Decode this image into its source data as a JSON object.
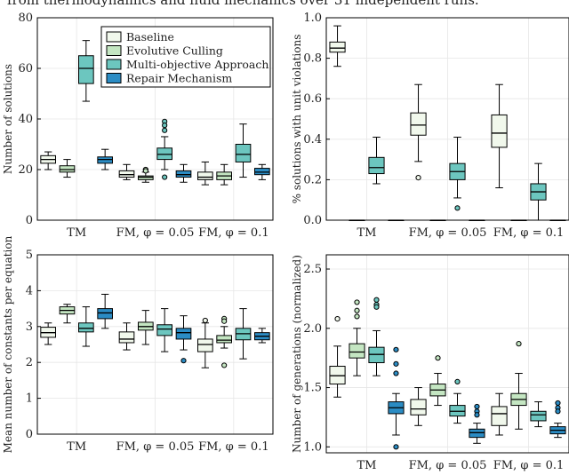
{
  "caption": "from thermodynamics and fluid mechanics over 31 independent runs.",
  "colors": {
    "Baseline": "#f1f8ec",
    "Evolutive Culling": "#c4e6c2",
    "Multi-objective Approach": "#6cc6bf",
    "Repair Mechanism": "#2b8cc4"
  },
  "chart_data": [
    {
      "id": "p1",
      "type": "box",
      "ylabel": "Number of solutions",
      "ylim": [
        0,
        80
      ],
      "yticks": [
        0,
        20,
        40,
        60,
        80
      ],
      "categories": [
        "TM",
        "FM, φ = 0.05",
        "FM, φ = 0.1"
      ],
      "legend": {
        "position": "top-center",
        "entries": [
          "Baseline",
          "Evolutive Culling",
          "Multi-objective Approach",
          "Repair Mechanism"
        ]
      },
      "series": [
        {
          "name": "Baseline",
          "stats": [
            {
              "whislo": 20,
              "q1": 22.5,
              "med": 24,
              "q3": 25.5,
              "whishi": 27,
              "fliers": []
            },
            {
              "whislo": 16,
              "q1": 17,
              "med": 18,
              "q3": 19.5,
              "whishi": 22,
              "fliers": []
            },
            {
              "whislo": 14,
              "q1": 16,
              "med": 17,
              "q3": 19,
              "whishi": 23,
              "fliers": []
            }
          ]
        },
        {
          "name": "Evolutive Culling",
          "stats": [
            {
              "whislo": 17,
              "q1": 19,
              "med": 20,
              "q3": 21.5,
              "whishi": 24,
              "fliers": []
            },
            {
              "whislo": 15,
              "q1": 16,
              "med": 17,
              "q3": 17.5,
              "whishi": 19,
              "fliers": [
                20,
                19.5
              ]
            },
            {
              "whislo": 14,
              "q1": 16,
              "med": 17.5,
              "q3": 19,
              "whishi": 22,
              "fliers": []
            }
          ]
        },
        {
          "name": "Multi-objective Approach",
          "stats": [
            {
              "whislo": 47,
              "q1": 54,
              "med": 60,
              "q3": 65,
              "whishi": 71,
              "fliers": []
            },
            {
              "whislo": 20,
              "q1": 24,
              "med": 26,
              "q3": 28.5,
              "whishi": 33,
              "fliers": [
                39,
                37.5,
                35.5,
                17
              ]
            },
            {
              "whislo": 17,
              "q1": 23,
              "med": 26,
              "q3": 30,
              "whishi": 38,
              "fliers": []
            }
          ]
        },
        {
          "name": "Repair Mechanism",
          "stats": [
            {
              "whislo": 20,
              "q1": 22.5,
              "med": 24,
              "q3": 25,
              "whishi": 28,
              "fliers": []
            },
            {
              "whislo": 15,
              "q1": 17,
              "med": 18,
              "q3": 19.5,
              "whishi": 22,
              "fliers": []
            },
            {
              "whislo": 16,
              "q1": 18,
              "med": 19,
              "q3": 20.5,
              "whishi": 22,
              "fliers": []
            }
          ]
        }
      ]
    },
    {
      "id": "p2",
      "type": "box",
      "ylabel": "% solutions with unit violations",
      "ylim": [
        0,
        1.0
      ],
      "yticks": [
        0.0,
        0.2,
        0.4,
        0.6,
        0.8,
        1.0
      ],
      "categories": [
        "TM",
        "FM, φ = 0.05",
        "FM, φ = 0.1"
      ],
      "series": [
        {
          "name": "Baseline",
          "stats": [
            {
              "whislo": 0.76,
              "q1": 0.83,
              "med": 0.85,
              "q3": 0.88,
              "whishi": 0.96,
              "fliers": []
            },
            {
              "whislo": 0.29,
              "q1": 0.42,
              "med": 0.47,
              "q3": 0.53,
              "whishi": 0.67,
              "fliers": [
                0.21
              ]
            },
            {
              "whislo": 0.16,
              "q1": 0.36,
              "med": 0.43,
              "q3": 0.52,
              "whishi": 0.67,
              "fliers": []
            }
          ]
        },
        {
          "name": "Evolutive Culling",
          "stats": [
            {
              "whislo": 0,
              "q1": 0,
              "med": 0,
              "q3": 0,
              "whishi": 0,
              "fliers": []
            },
            {
              "whislo": 0,
              "q1": 0,
              "med": 0,
              "q3": 0,
              "whishi": 0,
              "fliers": []
            },
            {
              "whislo": 0,
              "q1": 0,
              "med": 0,
              "q3": 0,
              "whishi": 0,
              "fliers": []
            }
          ]
        },
        {
          "name": "Multi-objective Approach",
          "stats": [
            {
              "whislo": 0.18,
              "q1": 0.23,
              "med": 0.26,
              "q3": 0.31,
              "whishi": 0.41,
              "fliers": []
            },
            {
              "whislo": 0.11,
              "q1": 0.2,
              "med": 0.24,
              "q3": 0.28,
              "whishi": 0.41,
              "fliers": [
                0.06
              ]
            },
            {
              "whislo": 0.0,
              "q1": 0.1,
              "med": 0.14,
              "q3": 0.18,
              "whishi": 0.28,
              "fliers": []
            }
          ]
        },
        {
          "name": "Repair Mechanism",
          "stats": [
            {
              "whislo": 0,
              "q1": 0,
              "med": 0,
              "q3": 0,
              "whishi": 0,
              "fliers": []
            },
            {
              "whislo": 0,
              "q1": 0,
              "med": 0,
              "q3": 0,
              "whishi": 0,
              "fliers": []
            },
            {
              "whislo": 0,
              "q1": 0,
              "med": 0,
              "q3": 0,
              "whishi": 0,
              "fliers": []
            }
          ]
        }
      ]
    },
    {
      "id": "p3",
      "type": "box",
      "ylabel": "Mean number of constants per equation",
      "ylim": [
        0,
        5
      ],
      "yticks": [
        0,
        1,
        2,
        3,
        4,
        5
      ],
      "categories": [
        "TM",
        "FM, φ = 0.05",
        "FM, φ = 0.1"
      ],
      "series": [
        {
          "name": "Baseline",
          "stats": [
            {
              "whislo": 2.5,
              "q1": 2.7,
              "med": 2.83,
              "q3": 2.98,
              "whishi": 3.1,
              "fliers": []
            },
            {
              "whislo": 2.35,
              "q1": 2.55,
              "med": 2.65,
              "q3": 2.85,
              "whishi": 3.1,
              "fliers": []
            },
            {
              "whislo": 1.85,
              "q1": 2.3,
              "med": 2.5,
              "q3": 2.65,
              "whishi": 3.1,
              "fliers": [
                3.17
              ]
            }
          ]
        },
        {
          "name": "Evolutive Culling",
          "stats": [
            {
              "whislo": 3.1,
              "q1": 3.35,
              "med": 3.45,
              "q3": 3.55,
              "whishi": 3.62,
              "fliers": []
            },
            {
              "whislo": 2.5,
              "q1": 2.9,
              "med": 3.0,
              "q3": 3.12,
              "whishi": 3.45,
              "fliers": []
            },
            {
              "whislo": 2.4,
              "q1": 2.55,
              "med": 2.62,
              "q3": 2.75,
              "whishi": 3.0,
              "fliers": [
                3.22,
                3.15,
                1.92
              ]
            }
          ]
        },
        {
          "name": "Multi-objective Approach",
          "stats": [
            {
              "whislo": 2.45,
              "q1": 2.85,
              "med": 2.95,
              "q3": 3.1,
              "whishi": 3.55,
              "fliers": []
            },
            {
              "whislo": 2.3,
              "q1": 2.75,
              "med": 2.93,
              "q3": 3.05,
              "whishi": 3.5,
              "fliers": []
            },
            {
              "whislo": 2.1,
              "q1": 2.63,
              "med": 2.8,
              "q3": 2.95,
              "whishi": 3.5,
              "fliers": []
            }
          ]
        },
        {
          "name": "Repair Mechanism",
          "stats": [
            {
              "whislo": 2.95,
              "q1": 3.22,
              "med": 3.38,
              "q3": 3.5,
              "whishi": 3.9,
              "fliers": []
            },
            {
              "whislo": 2.35,
              "q1": 2.65,
              "med": 2.83,
              "q3": 2.95,
              "whishi": 3.3,
              "fliers": [
                2.05
              ]
            },
            {
              "whislo": 2.55,
              "q1": 2.63,
              "med": 2.73,
              "q3": 2.83,
              "whishi": 2.95,
              "fliers": []
            }
          ]
        }
      ]
    },
    {
      "id": "p4",
      "type": "box",
      "ylabel": "Number of generations (normalized)",
      "ylim": [
        0.95,
        2.62
      ],
      "yticks": [
        1.0,
        1.5,
        2.0,
        2.5
      ],
      "categories": [
        "TM",
        "FM, φ = 0.05",
        "FM, φ = 0.1"
      ],
      "series": [
        {
          "name": "Baseline",
          "stats": [
            {
              "whislo": 1.42,
              "q1": 1.53,
              "med": 1.6,
              "q3": 1.68,
              "whishi": 1.85,
              "fliers": [
                2.08
              ]
            },
            {
              "whislo": 1.18,
              "q1": 1.27,
              "med": 1.32,
              "q3": 1.4,
              "whishi": 1.5,
              "fliers": []
            },
            {
              "whislo": 1.1,
              "q1": 1.18,
              "med": 1.28,
              "q3": 1.34,
              "whishi": 1.45,
              "fliers": []
            }
          ]
        },
        {
          "name": "Evolutive Culling",
          "stats": [
            {
              "whislo": 1.6,
              "q1": 1.75,
              "med": 1.8,
              "q3": 1.87,
              "whishi": 2.0,
              "fliers": [
                2.22,
                2.15,
                2.1
              ]
            },
            {
              "whislo": 1.35,
              "q1": 1.43,
              "med": 1.48,
              "q3": 1.53,
              "whishi": 1.62,
              "fliers": [
                1.75
              ]
            },
            {
              "whislo": 1.15,
              "q1": 1.35,
              "med": 1.4,
              "q3": 1.45,
              "whishi": 1.62,
              "fliers": [
                1.87
              ]
            }
          ]
        },
        {
          "name": "Multi-objective Approach",
          "stats": [
            {
              "whislo": 1.6,
              "q1": 1.71,
              "med": 1.78,
              "q3": 1.84,
              "whishi": 1.98,
              "fliers": [
                2.24,
                2.2,
                2.18
              ]
            },
            {
              "whislo": 1.2,
              "q1": 1.26,
              "med": 1.3,
              "q3": 1.35,
              "whishi": 1.45,
              "fliers": [
                1.55
              ]
            },
            {
              "whislo": 1.17,
              "q1": 1.22,
              "med": 1.27,
              "q3": 1.3,
              "whishi": 1.38,
              "fliers": []
            }
          ]
        },
        {
          "name": "Repair Mechanism",
          "stats": [
            {
              "whislo": 1.1,
              "q1": 1.28,
              "med": 1.33,
              "q3": 1.38,
              "whishi": 1.45,
              "fliers": [
                1.82,
                1.7,
                1.62,
                1.0
              ]
            },
            {
              "whislo": 1.03,
              "q1": 1.08,
              "med": 1.12,
              "q3": 1.15,
              "whishi": 1.2,
              "fliers": [
                1.34,
                1.3,
                1.27
              ]
            },
            {
              "whislo": 1.08,
              "q1": 1.11,
              "med": 1.14,
              "q3": 1.17,
              "whishi": 1.2,
              "fliers": [
                1.37,
                1.33,
                1.3
              ]
            }
          ]
        }
      ]
    }
  ]
}
